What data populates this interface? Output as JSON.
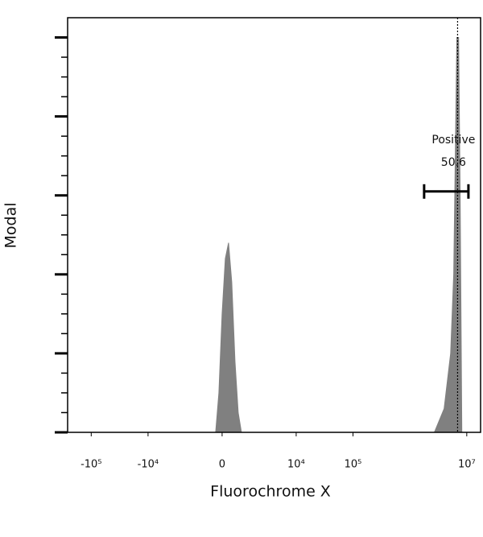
{
  "chart_data": {
    "type": "histogram-area",
    "x_label": "Fluorochrome X",
    "y_label": "Modal",
    "xscale": "asinh",
    "asinh_cofactor": 1000,
    "xlim": [
      -260000,
      17500000
    ],
    "ylim": [
      0,
      105
    ],
    "xticks": [
      {
        "value": -100000,
        "label": "-10⁵"
      },
      {
        "value": -10000,
        "label": "-10⁴"
      },
      0,
      {
        "value": 10000,
        "label": "10⁴"
      },
      {
        "value": 100000,
        "label": "10⁵"
      },
      {
        "value": 10000000,
        "label": "10⁷"
      }
    ],
    "yticks": [
      0,
      20,
      40,
      60,
      80,
      100
    ],
    "yticks_minor": [
      5,
      10,
      15,
      25,
      30,
      35,
      45,
      50,
      55,
      65,
      70,
      75,
      85,
      90,
      95
    ],
    "series": [
      {
        "color": "#808080",
        "x": [
          -263,
          -130,
          0,
          130,
          263,
          402,
          545,
          698,
          865,
          2700000,
          4000000,
          5200000,
          5900000,
          6300000,
          6700000,
          7200000,
          7650000,
          8200000
        ],
        "values": [
          0,
          10,
          30,
          44,
          48,
          38,
          18,
          5,
          0,
          0,
          6,
          20,
          40,
          70,
          100,
          100,
          60,
          0
        ]
      }
    ],
    "marker_x": 6900000,
    "gate": {
      "name": "Positive",
      "value": 50.6,
      "x": [
        1780000,
        10700000
      ],
      "y": 61
    }
  }
}
